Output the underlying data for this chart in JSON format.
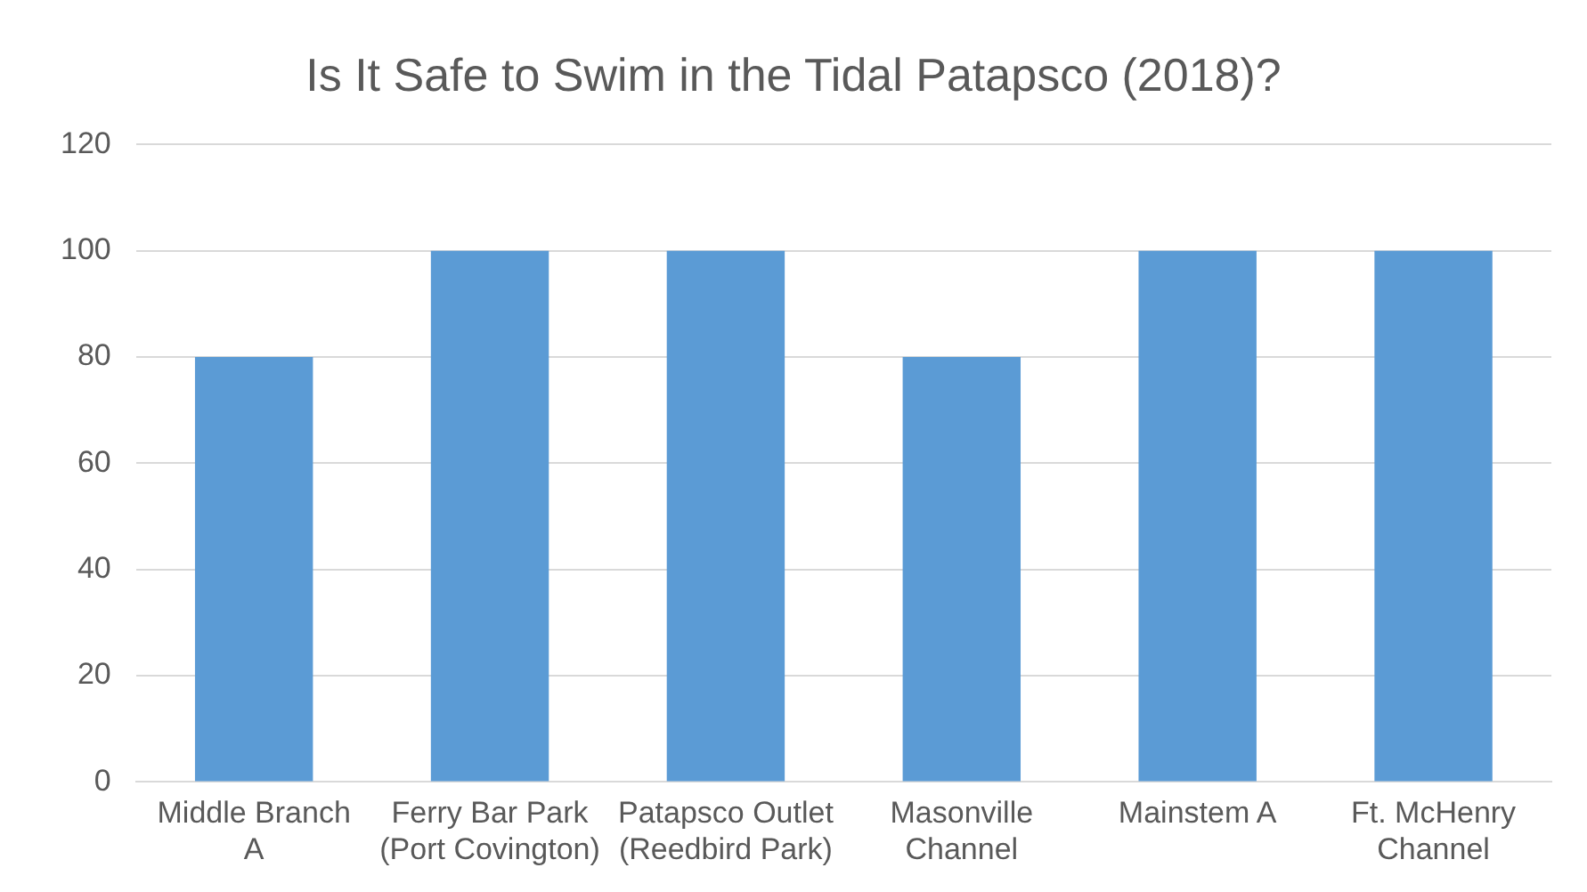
{
  "chart_data": {
    "type": "bar",
    "title": "Is It Safe to Swim in the Tidal Patapsco (2018)?",
    "categories": [
      "Middle Branch A",
      "Ferry Bar Park (Port Covington)",
      "Patapsco Outlet (Reedbird Park)",
      "Masonville Channel",
      "Mainstem A",
      "Ft. McHenry Channel"
    ],
    "values": [
      80,
      100,
      100,
      80,
      100,
      100
    ],
    "color": "#5b9bd5",
    "ylim": [
      0,
      120
    ],
    "yticks": [
      0,
      20,
      40,
      60,
      80,
      100,
      120
    ],
    "grid": "y"
  }
}
